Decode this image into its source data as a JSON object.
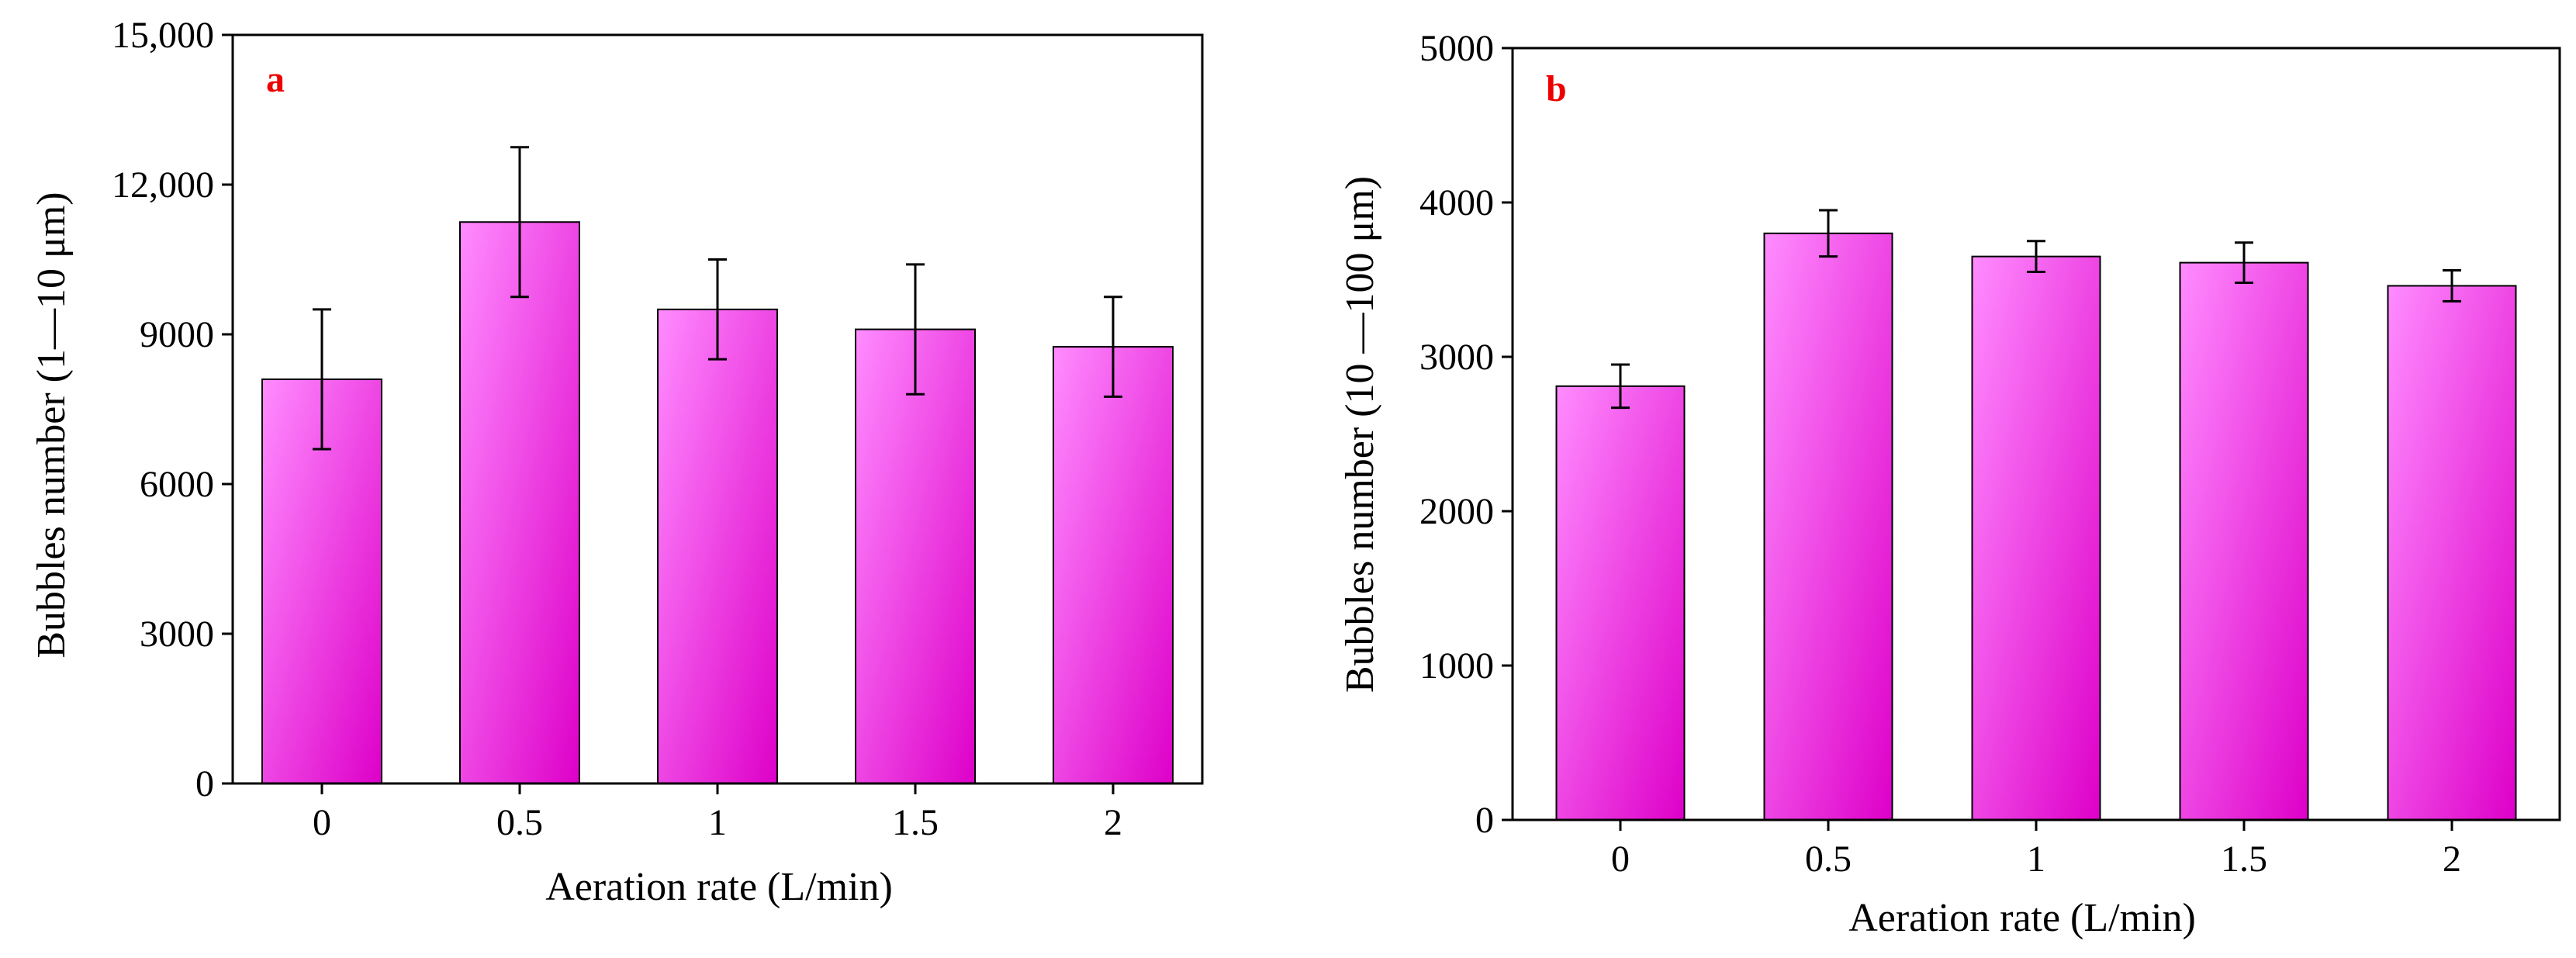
{
  "colors": {
    "bar_light": "#ff8cff",
    "bar_dark": "#dd00c8",
    "panel_label": "#ee0000",
    "axis": "#000000"
  },
  "chart_data": [
    {
      "type": "bar",
      "panel_label": "a",
      "title": "",
      "xlabel": "Aeration rate (L/min)",
      "ylabel": "Bubbles number (1—10 μm)",
      "categories": [
        "0",
        "0.5",
        "1",
        "1.5",
        "2"
      ],
      "values": [
        8100,
        11250,
        9500,
        9100,
        8750
      ],
      "errors": [
        1400,
        1500,
        1000,
        1300,
        1000
      ],
      "ylim": [
        0,
        15000
      ],
      "yticks": [
        0,
        3000,
        6000,
        9000,
        12000,
        15000
      ],
      "ytick_labels": [
        "0",
        "3000",
        "6000",
        "9000",
        "12,000",
        "15,000"
      ],
      "grid": false
    },
    {
      "type": "bar",
      "panel_label": "b",
      "title": "",
      "xlabel": "Aeration rate (L/min)",
      "ylabel": "Bubbles number (10 —100 μm)",
      "categories": [
        "0",
        "0.5",
        "1",
        "1.5",
        "2"
      ],
      "values": [
        2810,
        3800,
        3650,
        3610,
        3460
      ],
      "errors": [
        140,
        150,
        100,
        130,
        100
      ],
      "ylim": [
        0,
        5000
      ],
      "yticks": [
        0,
        1000,
        2000,
        3000,
        4000,
        5000
      ],
      "ytick_labels": [
        "0",
        "1000",
        "2000",
        "3000",
        "4000",
        "5000"
      ],
      "grid": false
    }
  ]
}
